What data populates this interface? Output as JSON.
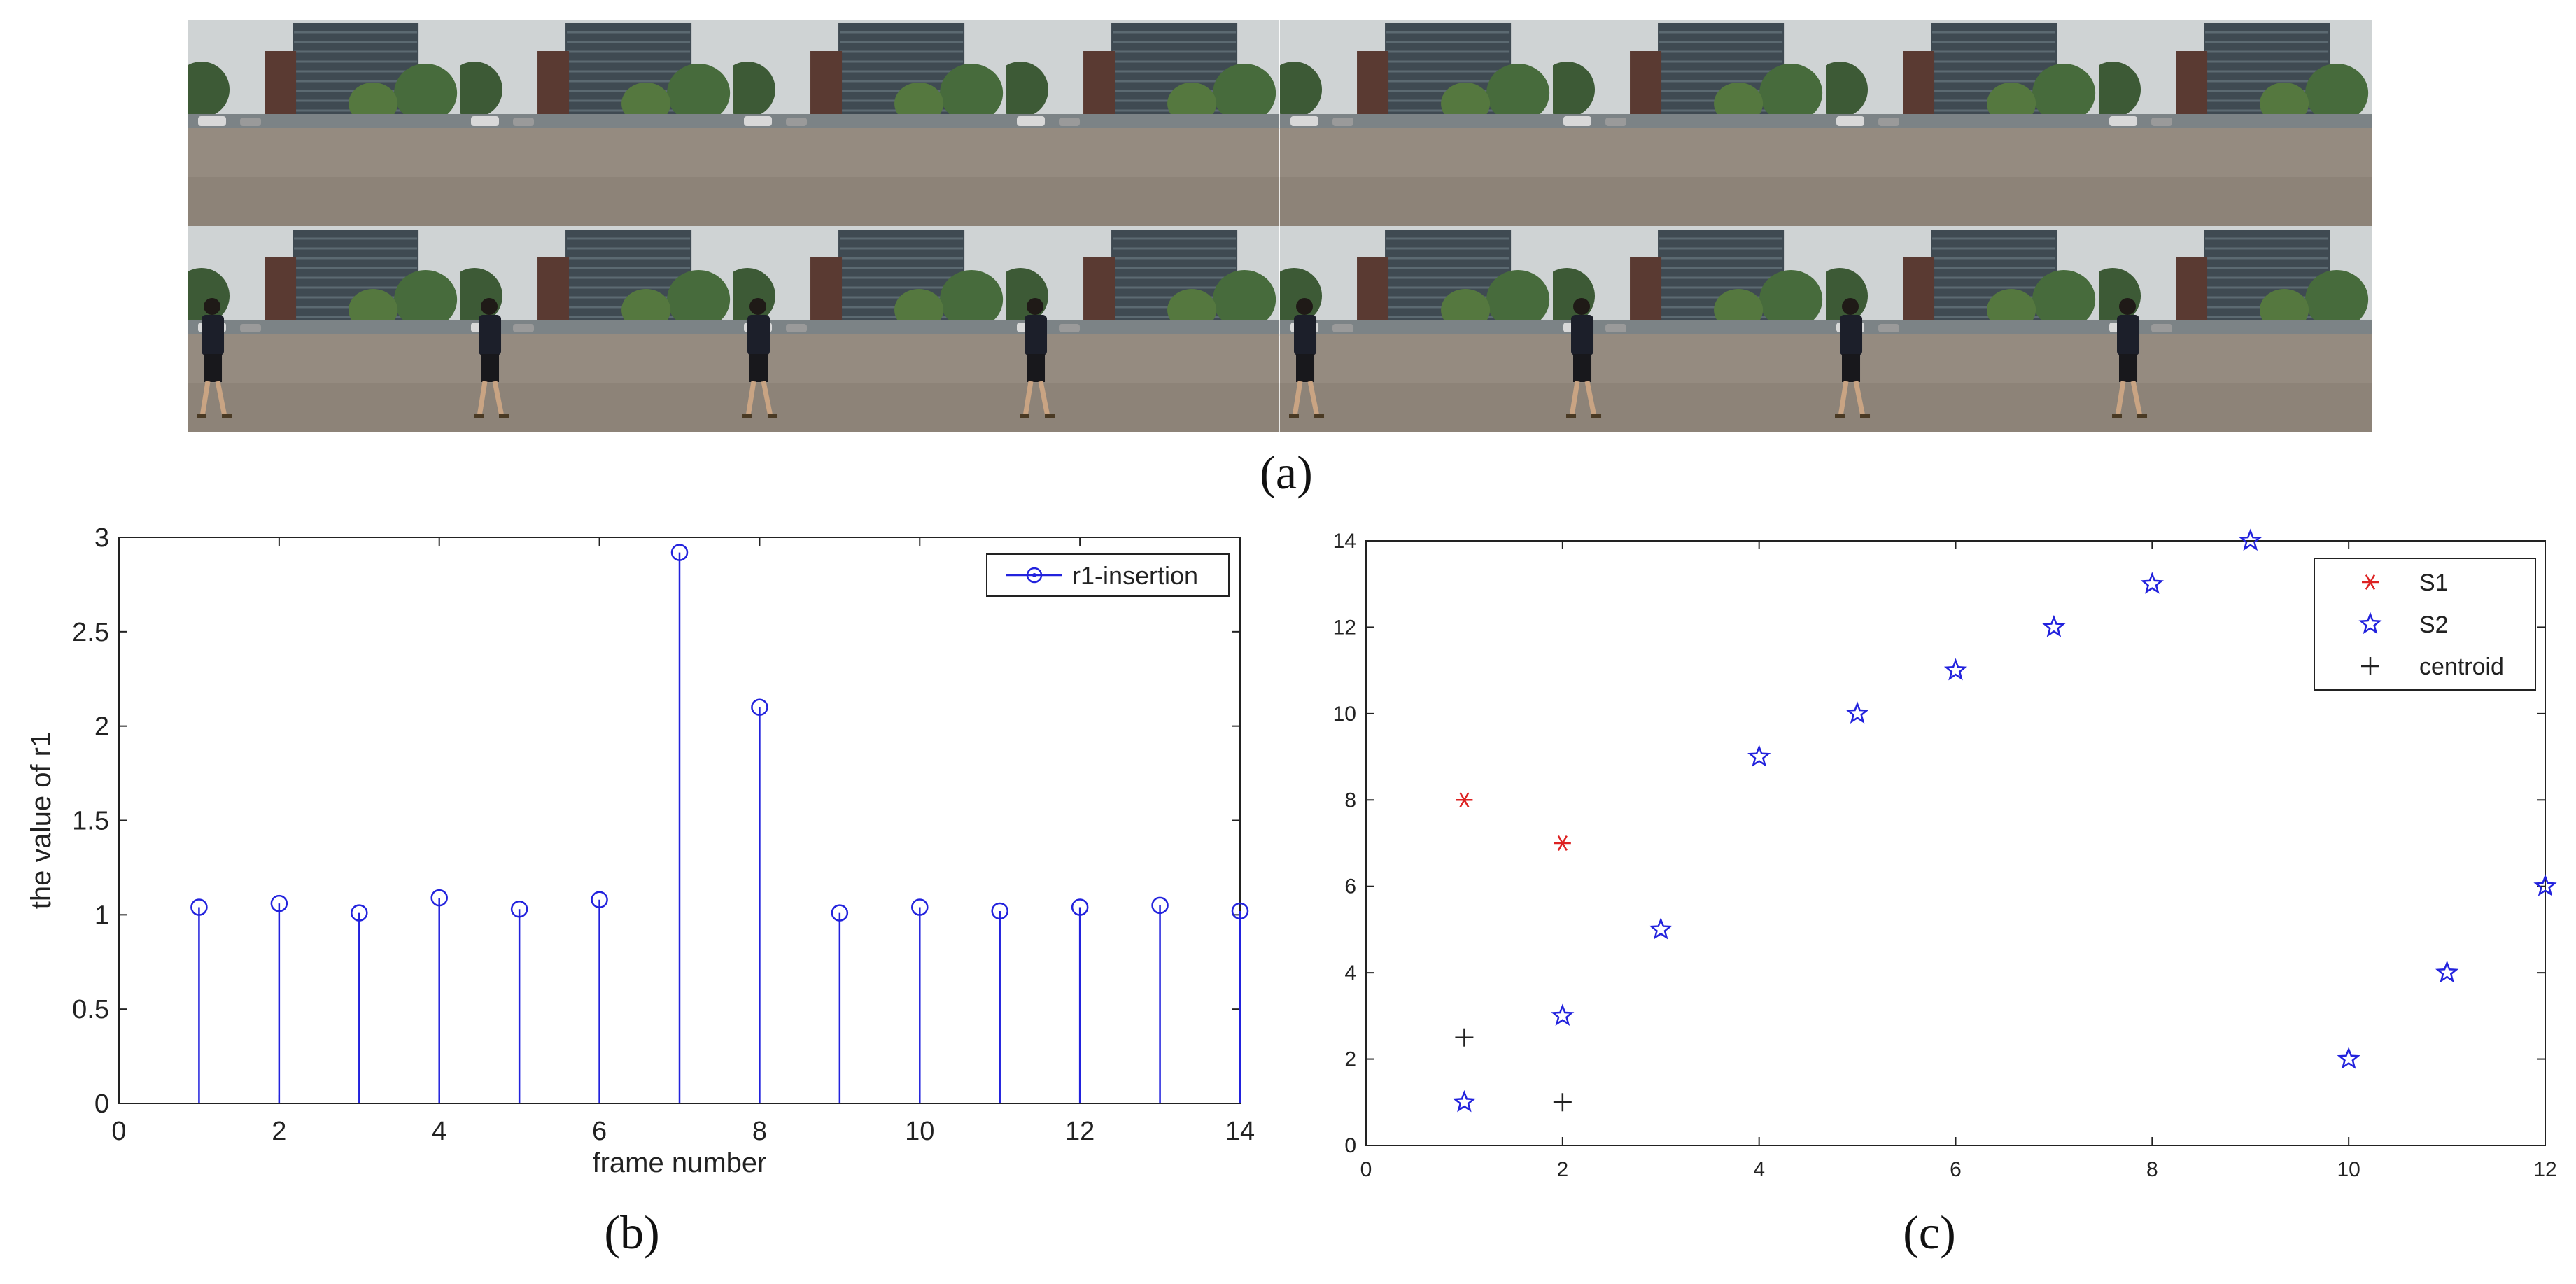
{
  "panel_labels": {
    "a": "(a)",
    "b": "(b)",
    "c": "(c)"
  },
  "frames": {
    "columns": 8,
    "rows": [
      {
        "name": "background-frames",
        "walker": false
      },
      {
        "name": "walker-frames",
        "walker": true
      }
    ]
  },
  "chart_data": [
    {
      "type": "stem",
      "panel": "b",
      "xlabel": "frame number",
      "ylabel": "the value of r1",
      "xlim": [
        0,
        14
      ],
      "ylim": [
        0,
        3
      ],
      "xticks": [
        0,
        2,
        4,
        6,
        8,
        10,
        12,
        14
      ],
      "xtick_labels": [
        "0",
        "2",
        "4",
        "6",
        "8",
        "10",
        "12",
        "14"
      ],
      "yticks": [
        0,
        0.5,
        1,
        1.5,
        2,
        2.5,
        3
      ],
      "ytick_labels": [
        "0",
        "0.5",
        "1",
        "1.5",
        "2",
        "2.5",
        "3"
      ],
      "legend": "top-right",
      "series": [
        {
          "name": "r1-insertion",
          "color": "#2222dd",
          "marker": "circle",
          "x": [
            1,
            2,
            3,
            4,
            5,
            6,
            7,
            8,
            9,
            10,
            11,
            12,
            13,
            14
          ],
          "y": [
            1.04,
            1.06,
            1.01,
            1.09,
            1.03,
            1.08,
            2.92,
            2.1,
            1.01,
            1.04,
            1.02,
            1.04,
            1.05,
            1.02
          ]
        }
      ]
    },
    {
      "type": "scatter",
      "panel": "c",
      "xlim": [
        0,
        12
      ],
      "ylim": [
        0,
        14
      ],
      "xticks": [
        0,
        2,
        4,
        6,
        8,
        10,
        12
      ],
      "xtick_labels": [
        "0",
        "2",
        "4",
        "6",
        "8",
        "10",
        "12"
      ],
      "yticks": [
        0,
        2,
        4,
        6,
        8,
        10,
        12,
        14
      ],
      "ytick_labels": [
        "0",
        "2",
        "4",
        "6",
        "8",
        "10",
        "12",
        "14"
      ],
      "legend": "top-right",
      "series": [
        {
          "name": "S1",
          "color": "#dd2222",
          "marker": "asterisk",
          "x": [
            1,
            2
          ],
          "y": [
            8,
            7
          ]
        },
        {
          "name": "S2",
          "color": "#2222dd",
          "marker": "star",
          "x": [
            1,
            2,
            3,
            4,
            5,
            6,
            7,
            8,
            9,
            10,
            11,
            12
          ],
          "y": [
            1,
            3,
            5,
            9,
            10,
            11,
            12,
            13,
            14,
            2,
            4,
            6
          ]
        },
        {
          "name": "centroid",
          "color": "#222222",
          "marker": "plus",
          "x": [
            1,
            2
          ],
          "y": [
            2.5,
            1
          ]
        }
      ]
    }
  ]
}
